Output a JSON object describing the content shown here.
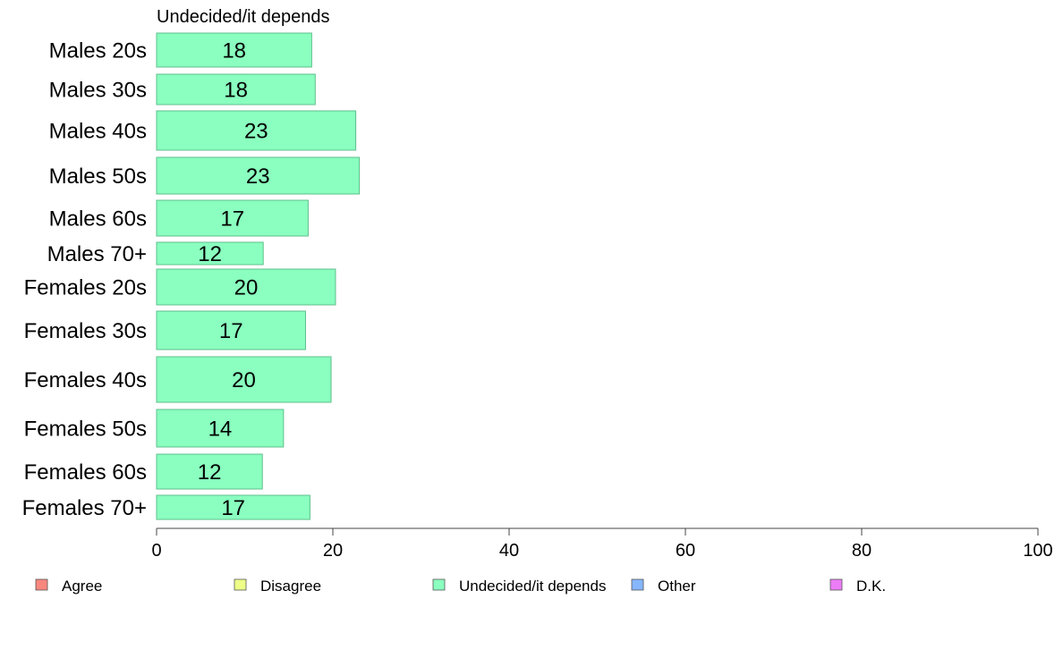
{
  "chart_data": {
    "type": "bar",
    "orientation": "horizontal",
    "panel_title": "Undecided/it depends",
    "categories": [
      "Males 20s",
      "Males 30s",
      "Males 40s",
      "Males 50s",
      "Males 60s",
      "Males 70+",
      "Females 20s",
      "Females 30s",
      "Females 40s",
      "Females 50s",
      "Females 60s",
      "Females 70+"
    ],
    "series": [
      {
        "name": "Undecided/it depends",
        "color": "#8AFFBF",
        "values": [
          17.6,
          18.0,
          22.6,
          23.0,
          17.2,
          12.1,
          20.3,
          16.9,
          19.8,
          14.4,
          12.0,
          17.4
        ],
        "labels": [
          "18",
          "18",
          "23",
          "23",
          "17",
          "12",
          "20",
          "17",
          "20",
          "14",
          "12",
          "17"
        ]
      }
    ],
    "xlim": [
      0,
      100
    ],
    "xticks": [
      0,
      20,
      40,
      60,
      80,
      100
    ],
    "xtick_labels": [
      "0",
      "20",
      "40",
      "60",
      "80",
      "100"
    ],
    "legend": {
      "position": "bottom",
      "items": [
        {
          "label": "Agree",
          "color": "#F8877E"
        },
        {
          "label": "Disagree",
          "color": "#EEFF88"
        },
        {
          "label": "Undecided/it depends",
          "color": "#8AFFBF"
        },
        {
          "label": "Other",
          "color": "#86B6FF"
        },
        {
          "label": "D.K.",
          "color": "#EC7DF7"
        }
      ]
    },
    "grid": false
  }
}
